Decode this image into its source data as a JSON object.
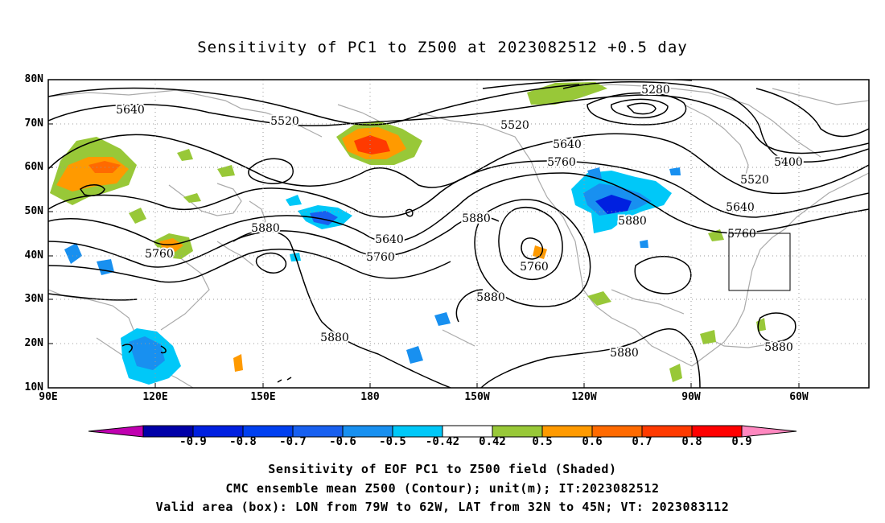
{
  "title": "Sensitivity of PC1 to Z500 at 2023082512 +0.5 day",
  "axes": {
    "lat_labels": [
      "80N",
      "70N",
      "60N",
      "50N",
      "40N",
      "30N",
      "20N",
      "10N"
    ],
    "lon_labels": [
      "90E",
      "120E",
      "150E",
      "180",
      "150W",
      "120W",
      "90W",
      "60W"
    ]
  },
  "contour_labels": [
    "5280",
    "5400",
    "5520",
    "5520",
    "5520",
    "5640",
    "5640",
    "5640",
    "5640",
    "5760",
    "5760",
    "5760",
    "5760",
    "5760",
    "5880",
    "5880",
    "5880",
    "5880",
    "5880",
    "5880"
  ],
  "colorbar": {
    "labels": [
      "-0.9",
      "-0.8",
      "-0.7",
      "-0.6",
      "-0.5",
      "-0.42",
      "0.42",
      "0.5",
      "0.6",
      "0.7",
      "0.8",
      "0.9"
    ],
    "colors": [
      "#c000b0",
      "#0000a8",
      "#0020e0",
      "#0040f0",
      "#1860f0",
      "#1890f0",
      "#00c8f8",
      "#ffffff",
      "#98c838",
      "#ff9a00",
      "#ff6a00",
      "#ff3a00",
      "#ff0000",
      "#ff88c0"
    ]
  },
  "captions": [
    "Sensitivity of EOF PC1 to Z500 field (Shaded)",
    "CMC ensemble mean Z500 (Contour); unit(m); IT:2023082512",
    "Valid area (box): LON from 79W to 62W, LAT from 32N to 45N; VT: 2023083112"
  ]
}
